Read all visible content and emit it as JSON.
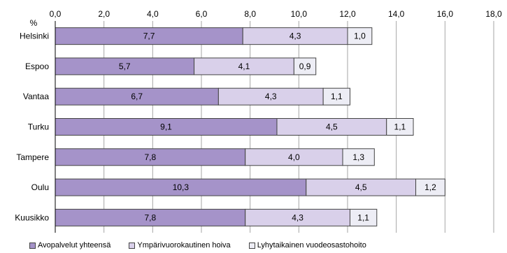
{
  "chart_data": {
    "type": "bar",
    "orientation": "horizontal",
    "stacked": true,
    "ylabel": "%",
    "categories": [
      "Helsinki",
      "Espoo",
      "Vantaa",
      "Turku",
      "Tampere",
      "Oulu",
      "Kuusikko"
    ],
    "series": [
      {
        "name": "Avopalvelut yhteensä",
        "color": "#a593c9",
        "values": [
          7.7,
          5.7,
          6.7,
          9.1,
          7.8,
          10.3,
          7.8
        ],
        "labels": [
          "7,7",
          "5,7",
          "6,7",
          "9,1",
          "7,8",
          "10,3",
          "7,8"
        ]
      },
      {
        "name": "Ympärivuorokautinen hoiva",
        "color": "#d9d0ea",
        "values": [
          4.3,
          4.1,
          4.3,
          4.5,
          4.0,
          4.5,
          4.3
        ],
        "labels": [
          "4,3",
          "4,1",
          "4,3",
          "4,5",
          "4,0",
          "4,5",
          "4,3"
        ]
      },
      {
        "name": "Lyhytaikainen vuodeosastohoito",
        "color": "#ededf5",
        "values": [
          1.0,
          0.9,
          1.1,
          1.1,
          1.3,
          1.2,
          1.1
        ],
        "labels": [
          "1,0",
          "0,9",
          "1,1",
          "1,1",
          "1,3",
          "1,2",
          "1,1"
        ]
      }
    ],
    "xlim": [
      0,
      18
    ],
    "xticks": [
      "0,0",
      "2,0",
      "4,0",
      "6,0",
      "8,0",
      "10,0",
      "12,0",
      "14,0",
      "16,0",
      "18,0"
    ],
    "grid": true,
    "legend": "bottom"
  }
}
